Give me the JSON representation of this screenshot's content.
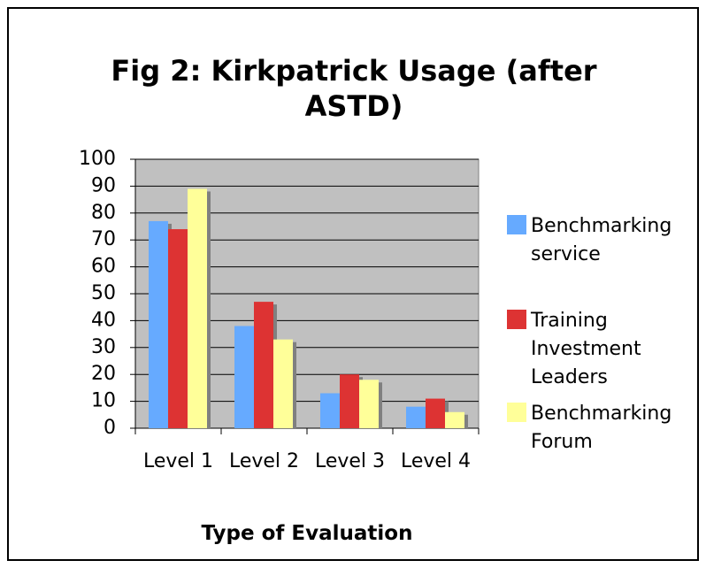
{
  "chart_data": {
    "type": "bar",
    "title": "Fig 2: Kirkpatrick Usage (after ASTD)",
    "x_label": "Type of Evaluation",
    "categories": [
      "Level 1",
      "Level 2",
      "Level 3",
      "Level 4"
    ],
    "series": [
      {
        "name": "Benchmarking service",
        "color": "#66aaff",
        "values": [
          77,
          38,
          13,
          8
        ]
      },
      {
        "name": "Training Investment Leaders",
        "color": "#dd3333",
        "values": [
          74,
          47,
          20,
          11
        ]
      },
      {
        "name": "Benchmarking Forum",
        "color": "#ffff99",
        "values": [
          89,
          33,
          18,
          6
        ]
      }
    ],
    "ylim": [
      0,
      100
    ],
    "yticks": [
      0,
      10,
      20,
      30,
      40,
      50,
      60,
      70,
      80,
      90,
      100
    ],
    "grid": true,
    "legend": "right"
  }
}
